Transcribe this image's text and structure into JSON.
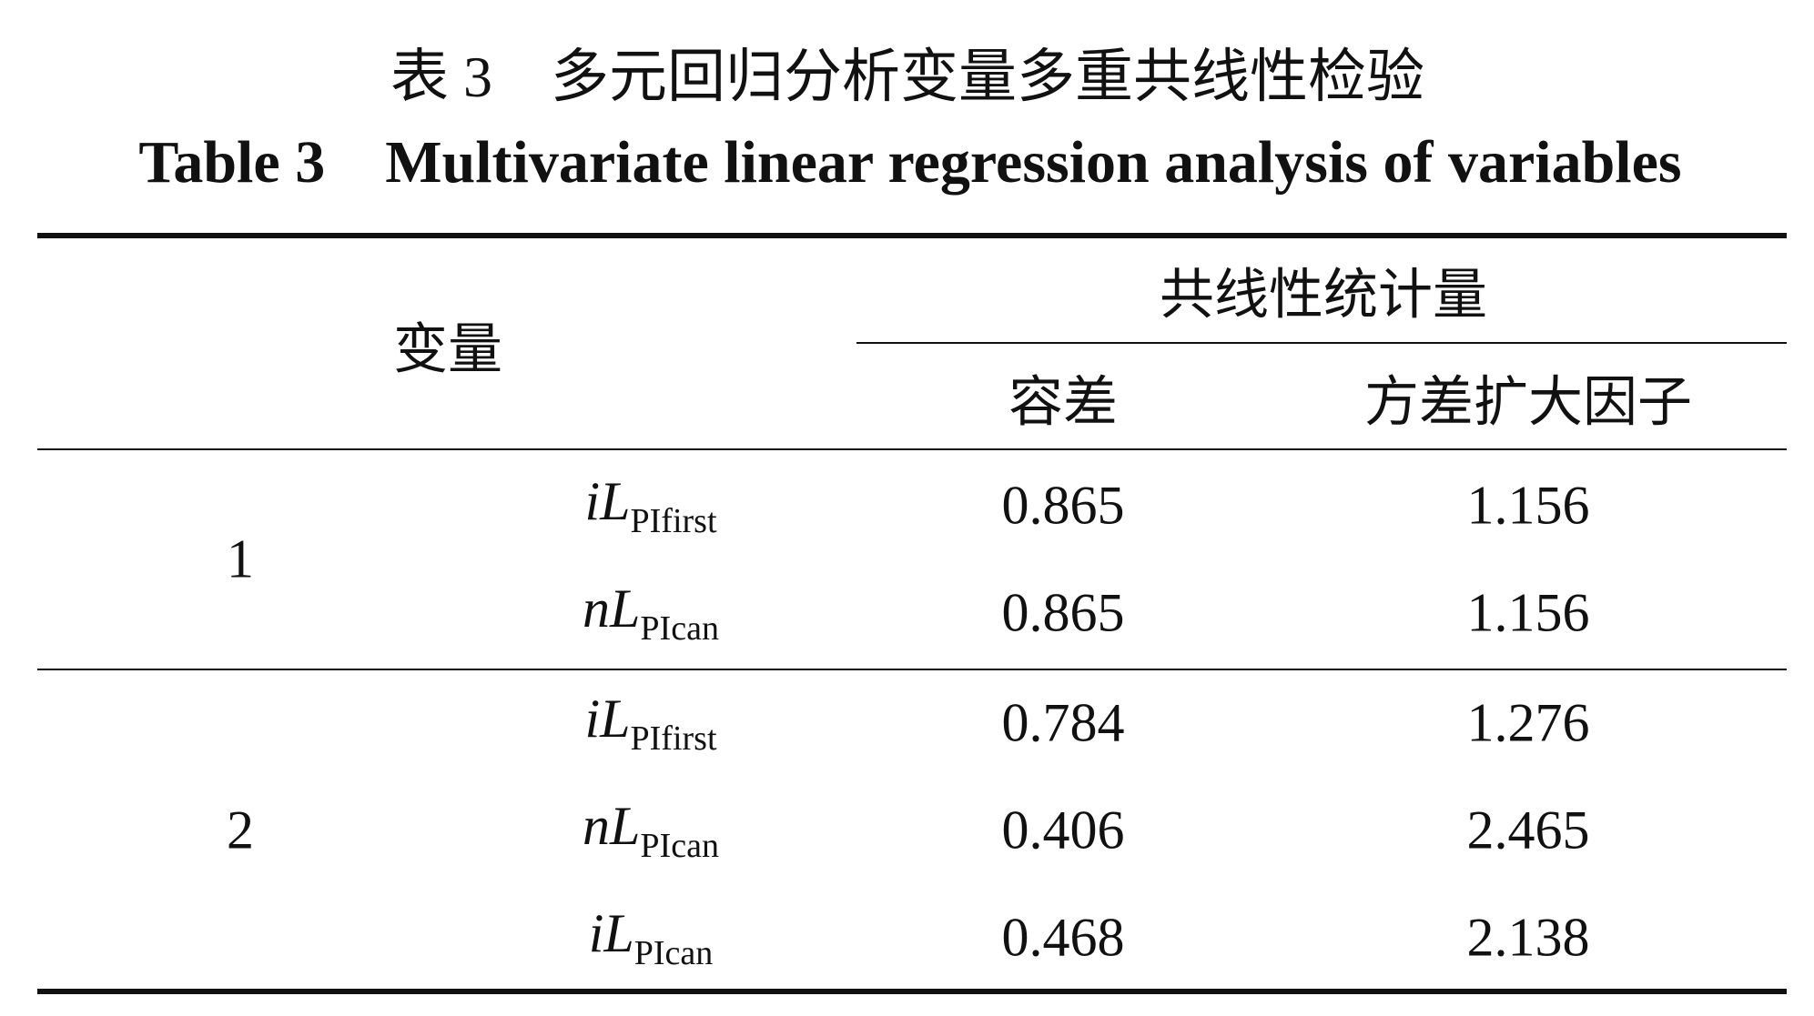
{
  "title_cn": "表 3　多元回归分析变量多重共线性检验",
  "title_en": "Table 3　Multivariate linear regression analysis of variables",
  "header": {
    "variable": "变量",
    "group": "共线性统计量",
    "tolerance": "容差",
    "vif": "方差扩大因子"
  },
  "groups": [
    {
      "model": "1",
      "rows": [
        {
          "var": "iL",
          "sub": "PIfirst",
          "tolerance": "0.865",
          "vif": "1.156"
        },
        {
          "var": "nL",
          "sub": "PIcan",
          "tolerance": "0.865",
          "vif": "1.156"
        }
      ]
    },
    {
      "model": "2",
      "rows": [
        {
          "var": "iL",
          "sub": "PIfirst",
          "tolerance": "0.784",
          "vif": "1.276"
        },
        {
          "var": "nL",
          "sub": "PIcan",
          "tolerance": "0.406",
          "vif": "2.465"
        },
        {
          "var": "iL",
          "sub": "PIcan",
          "tolerance": "0.468",
          "vif": "2.138"
        }
      ]
    }
  ]
}
